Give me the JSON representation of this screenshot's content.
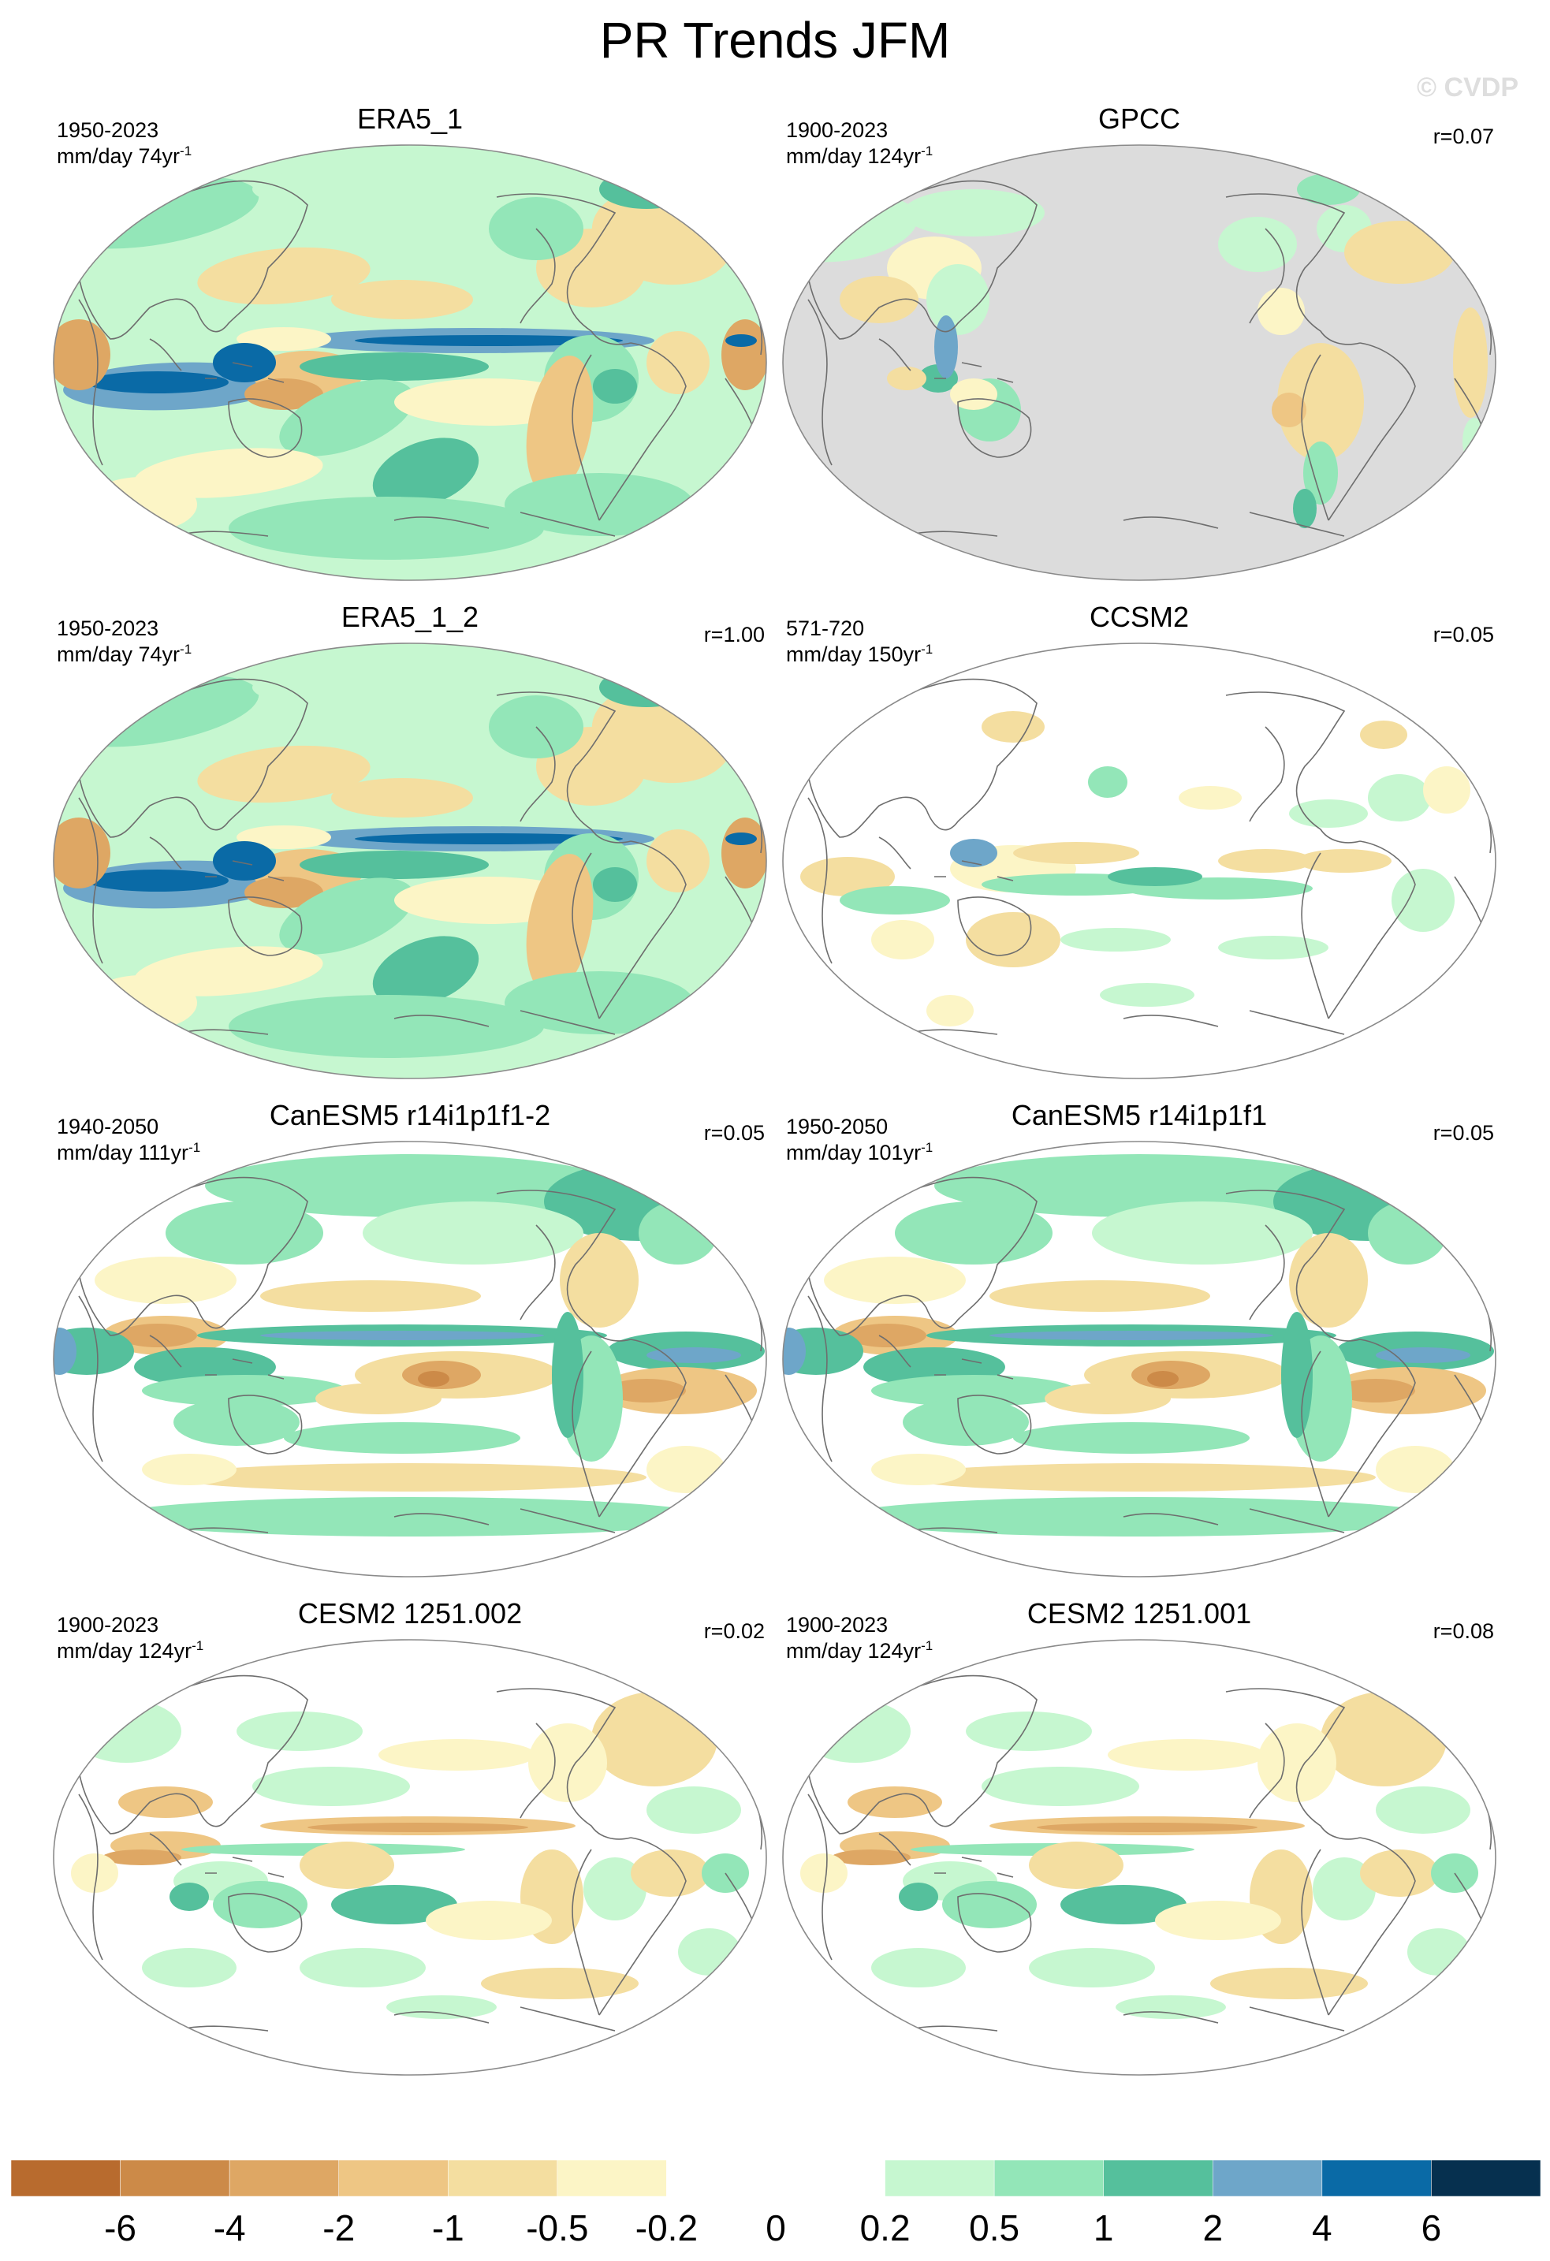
{
  "title": "PR Trends JFM",
  "watermark": "© CVDP",
  "colors": {
    "ocean_gray": "#dcdcdc",
    "coast": "#6e6e6e",
    "frame": "#8a8a8a"
  },
  "chart_data": {
    "type": "heatmap",
    "title": "PR Trends JFM",
    "panels": [
      {
        "name": "ERA5_1",
        "period": "1950-2023",
        "units": "mm/day 74yr",
        "units_exp": "-1",
        "r": "",
        "style": "era5"
      },
      {
        "name": "GPCC",
        "period": "1900-2023",
        "units": "mm/day 124yr",
        "units_exp": "-1",
        "r": "r=0.07",
        "style": "gpcc"
      },
      {
        "name": "ERA5_1_2",
        "period": "1950-2023",
        "units": "mm/day 74yr",
        "units_exp": "-1",
        "r": "r=1.00",
        "style": "era5"
      },
      {
        "name": "CCSM2",
        "period": "571-720",
        "units": "mm/day 150yr",
        "units_exp": "-1",
        "r": "r=0.05",
        "style": "weak"
      },
      {
        "name": "CanESM5 r14i1p1f1-2",
        "period": "1940-2050",
        "units": "mm/day 111yr",
        "units_exp": "-1",
        "r": "r=0.05",
        "style": "canesm"
      },
      {
        "name": "CanESM5 r14i1p1f1",
        "period": "1950-2050",
        "units": "mm/day 101yr",
        "units_exp": "-1",
        "r": "r=0.05",
        "style": "canesm"
      },
      {
        "name": "CESM2 1251.002",
        "period": "1900-2023",
        "units": "mm/day 124yr",
        "units_exp": "-1",
        "r": "r=0.02",
        "style": "cesm"
      },
      {
        "name": "CESM2 1251.001",
        "period": "1900-2023",
        "units": "mm/day 124yr",
        "units_exp": "-1",
        "r": "r=0.08",
        "style": "cesm"
      }
    ],
    "colorbar": {
      "levels": [
        "-6",
        "-4",
        "-2",
        "-1",
        "-0.5",
        "-0.2",
        "0",
        "0.2",
        "0.5",
        "1",
        "2",
        "4",
        "6"
      ],
      "colors": [
        "#b86b2e",
        "#cc8a48",
        "#dea764",
        "#eec684",
        "#f4dea0",
        "#fcf5c6",
        "#ffffff",
        "#ffffff",
        "#c6f7d0",
        "#93e6b8",
        "#55c09c",
        "#6ea6c9",
        "#0a6aa6",
        "#06304f"
      ]
    }
  }
}
